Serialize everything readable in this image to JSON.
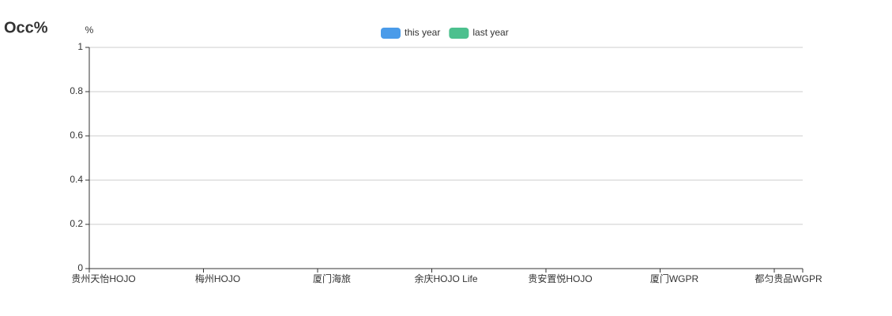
{
  "chart_data": {
    "type": "bar",
    "title": "Occ%",
    "y_label": "%",
    "categories": [
      "贵州天怡HOJO",
      "梅州HOJO",
      "厦门海旅",
      "余庆HOJO Life",
      "贵安置悦HOJO",
      "厦门WGPR",
      "都匀贵品WGPR"
    ],
    "series": [
      {
        "name": "this year",
        "color": "#4a9be9",
        "values": [
          0,
          0,
          0,
          0,
          0,
          0,
          0
        ]
      },
      {
        "name": "last year",
        "color": "#4cc08e",
        "values": [
          0,
          0,
          0,
          0,
          0,
          0,
          0
        ]
      }
    ],
    "ylim": [
      0,
      1
    ],
    "yticks": [
      0,
      0.2,
      0.4,
      0.6,
      0.8,
      1
    ],
    "grid": true,
    "legend": "top"
  }
}
